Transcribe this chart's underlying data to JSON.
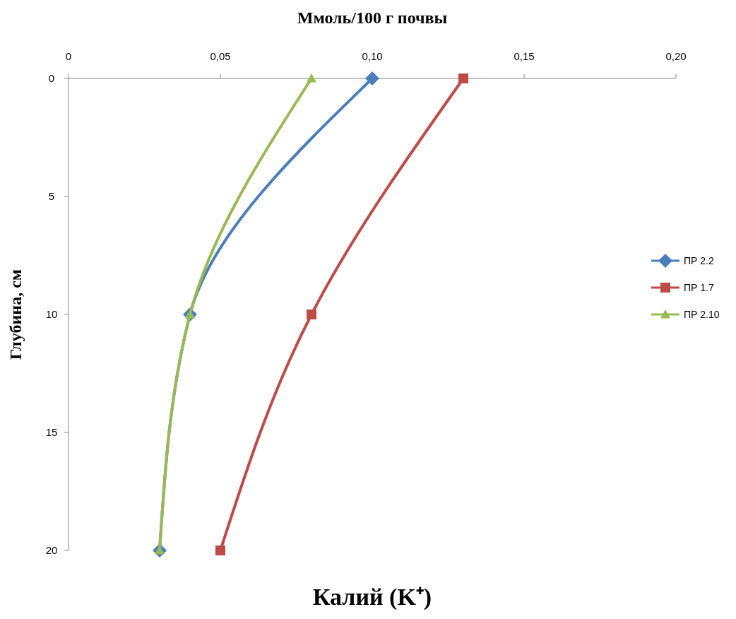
{
  "chart_data": {
    "type": "line",
    "title": "Калий (K⁺)",
    "xlabel": "Ммоль/100 г почвы",
    "ylabel": "Глубина, см",
    "xlim": [
      0,
      0.2
    ],
    "xticks": [
      0,
      {
        "value": 0.05,
        "label": "0,05"
      },
      {
        "value": 0.1,
        "label": "0,10"
      },
      {
        "value": 0.15,
        "label": "0,15"
      },
      {
        "value": 0.2,
        "label": "0,20"
      }
    ],
    "ylim": [
      20,
      0
    ],
    "yticks": [
      0,
      5,
      10,
      15,
      20
    ],
    "grid": false,
    "legend": "right",
    "series": [
      {
        "name": "ПР 2.2",
        "color": "#4a7ebb",
        "marker": "diamond",
        "x": [
          0.1,
          0.04,
          0.03
        ],
        "values": [
          0,
          10,
          20
        ]
      },
      {
        "name": "ПР 1.7",
        "color": "#be4b48",
        "marker": "square",
        "x": [
          0.13,
          0.08,
          0.05
        ],
        "values": [
          0,
          10,
          20
        ]
      },
      {
        "name": "ПР 2.10",
        "color": "#98b954",
        "marker": "triangle",
        "x": [
          0.08,
          0.04,
          0.03
        ],
        "values": [
          0,
          10,
          20
        ]
      }
    ]
  }
}
